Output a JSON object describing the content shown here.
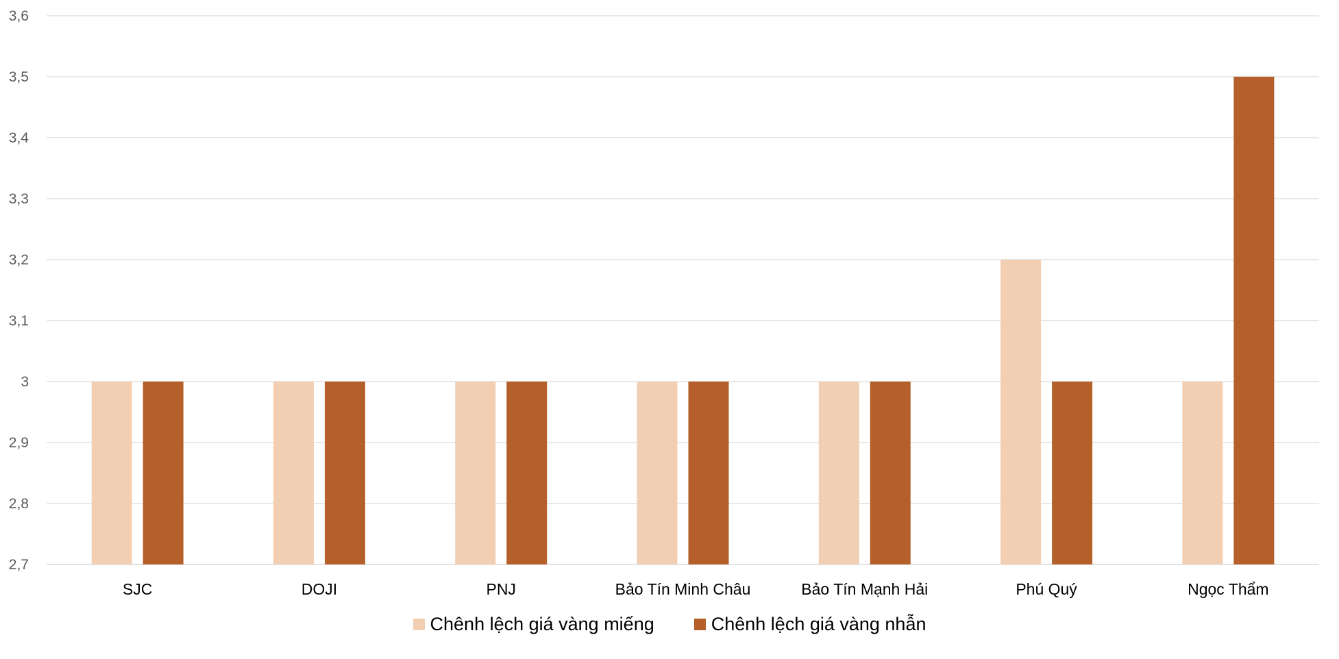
{
  "chart_data": {
    "type": "bar",
    "categories": [
      "SJC",
      "DOJI",
      "PNJ",
      "Bảo Tín Minh Châu",
      "Bảo Tín Mạnh Hải",
      "Phú Quý",
      "Ngọc Thẩm"
    ],
    "series": [
      {
        "name": "Chênh lệch giá vàng miếng",
        "color": "#F2CFB3",
        "values": [
          3,
          3,
          3,
          3,
          3,
          3.2,
          3
        ]
      },
      {
        "name": "Chênh lệch giá vàng nhẫn",
        "color": "#B5602B",
        "values": [
          3,
          3,
          3,
          3,
          3,
          3,
          3.5
        ]
      }
    ],
    "ylim": [
      2.7,
      3.6
    ],
    "yticks": [
      "2,7",
      "2,8",
      "2,9",
      "3",
      "3,1",
      "3,2",
      "3,3",
      "3,4",
      "3,5",
      "3,6"
    ],
    "grid": true,
    "legend_position": "bottom",
    "gridline_color": "#D9D9D9"
  }
}
